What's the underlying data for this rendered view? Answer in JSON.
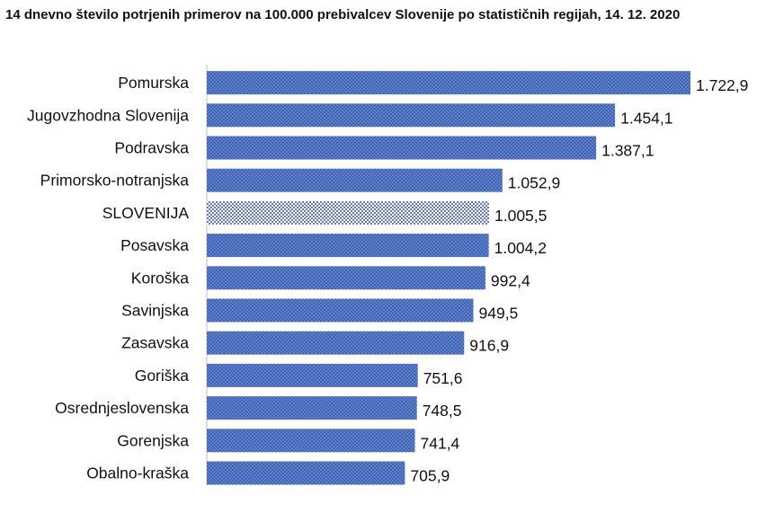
{
  "chart_data": {
    "type": "bar",
    "orientation": "horizontal",
    "title": "14 dnevno število potrjenih primerov na 100.000 prebivalcev Slovenije po statističnih regijah, 14. 12. 2020",
    "categories": [
      "Pomurska",
      "Jugovzhodna Slovenija",
      "Podravska",
      "Primorsko-notranjska",
      "SLOVENIJA",
      "Posavska",
      "Koroška",
      "Savinjska",
      "Zasavska",
      "Goriška",
      "Osrednjeslovenska",
      "Gorenjska",
      "Obalno-kraška"
    ],
    "values": [
      1722.9,
      1454.1,
      1387.1,
      1052.9,
      1005.5,
      1004.2,
      992.4,
      949.5,
      916.9,
      751.6,
      748.5,
      741.4,
      705.9
    ],
    "value_labels": [
      "1.722,9",
      "1.454,1",
      "1.387,1",
      "1.052,9",
      "1.005,5",
      "1.004,2",
      "992,4",
      "949,5",
      "916,9",
      "751,6",
      "748,5",
      "741,4",
      "705,9"
    ],
    "highlight": "SLOVENIJA",
    "xlim": [
      0,
      1800
    ],
    "grid": false,
    "legend": "none",
    "colors": {
      "bar_fill": "#5b7fcf",
      "bar_dots": "#25407f",
      "highlight_fill": "#ffffff",
      "highlight_dots": "#2f4f9f",
      "axis": "#bfbfbf"
    }
  }
}
